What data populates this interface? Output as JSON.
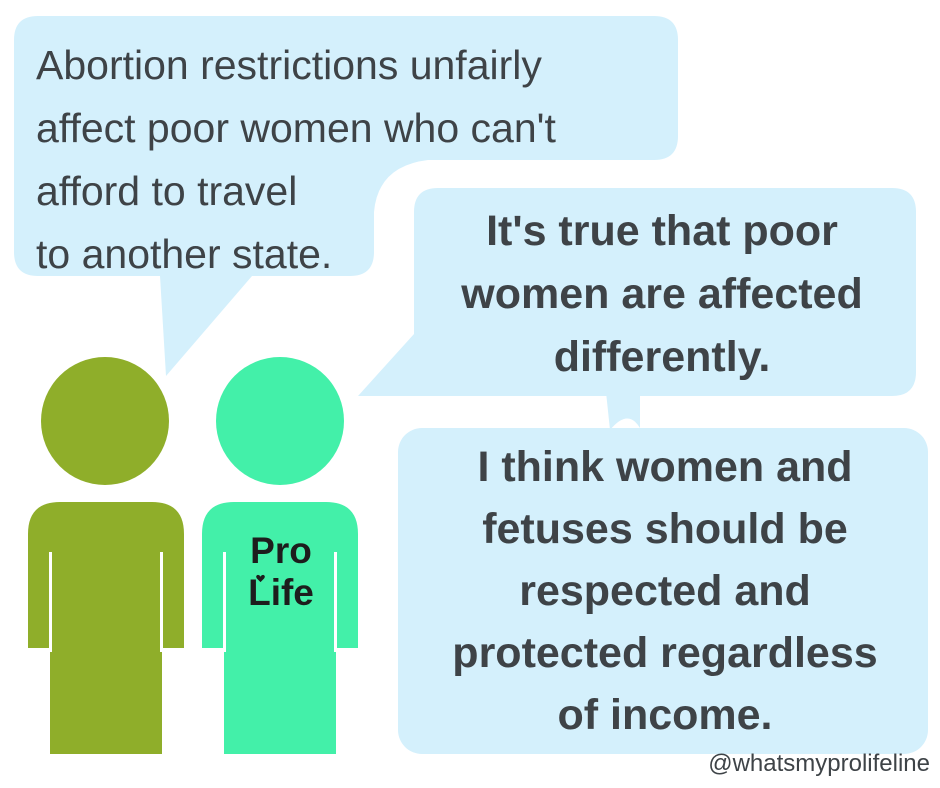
{
  "colors": {
    "bubble": "#d4f0fc",
    "person_left": "#8fae2a",
    "person_right": "#43f0a9",
    "text": "#3e4347"
  },
  "bubble_left": {
    "lines": [
      "Abortion restrictions unfairly",
      "affect poor women who can't",
      "afford to travel",
      "to another state."
    ]
  },
  "bubble_right_top": {
    "lines": [
      "It's true that poor",
      "women are affected",
      "differently."
    ]
  },
  "bubble_right_bottom": {
    "lines": [
      "I think women and",
      "fetuses should be",
      "respected and",
      "protected regardless",
      "of income."
    ]
  },
  "shirt": {
    "line1": "Pro",
    "line2": "Life",
    "icon": "heart-icon"
  },
  "handle": "@whatsmyprolifeline"
}
